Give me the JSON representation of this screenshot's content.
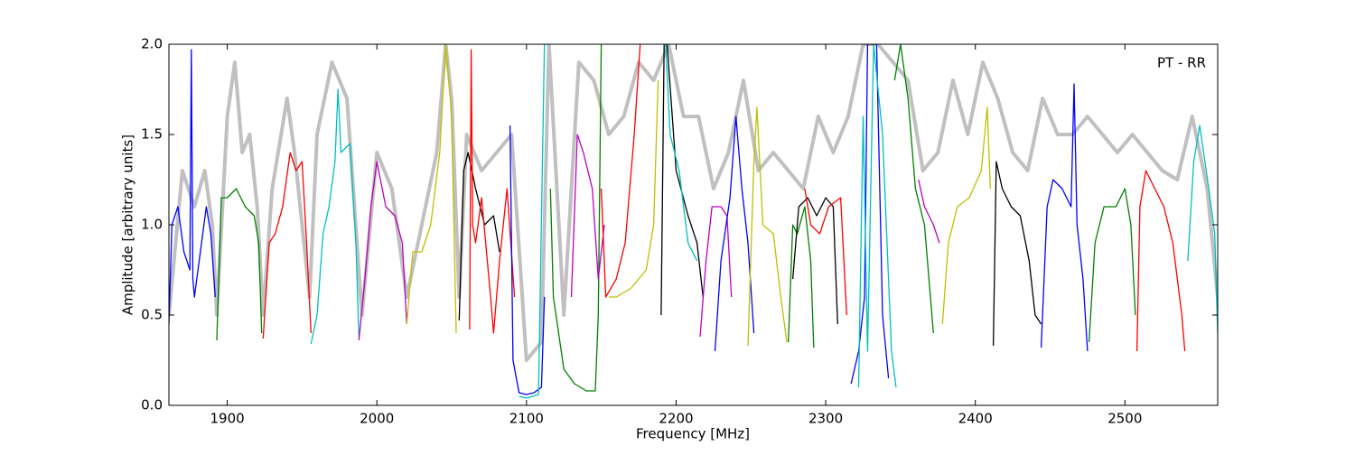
{
  "chart_data": {
    "type": "line",
    "xlabel": "Frequency [MHz]",
    "ylabel": "Amplitude [arbitrary units]",
    "annotation": "PT - RR",
    "xlim": [
      1861,
      2562
    ],
    "ylim": [
      0,
      2
    ],
    "xticks": [
      1900,
      2000,
      2100,
      2200,
      2300,
      2400,
      2500
    ],
    "yticks": [
      {
        "value": 0,
        "label": "0.0"
      },
      0.5,
      {
        "value": 1,
        "label": "1.0"
      },
      1.5,
      {
        "value": 2,
        "label": "2.0"
      }
    ],
    "series": [
      {
        "color": "#c0c0c0",
        "x": [
          1861,
          1870,
          1878,
          1885,
          1890,
          1893,
          1900,
          1905,
          1910,
          1915,
          1920,
          1924,
          1930,
          1940,
          1945,
          1955,
          1960,
          1970,
          1980,
          1990,
          2000,
          2010,
          2020,
          2030,
          2040,
          2046,
          2050,
          2055,
          2060,
          2070,
          2080,
          2090,
          2100,
          2110,
          2115,
          2125,
          2135,
          2145,
          2155,
          2165,
          2175,
          2185,
          2195,
          2205,
          2215,
          2225,
          2235,
          2245,
          2255,
          2265,
          2275,
          2285,
          2295,
          2305,
          2315,
          2325,
          2335,
          2345,
          2355,
          2365,
          2375,
          2385,
          2395,
          2405,
          2415,
          2425,
          2435,
          2445,
          2455,
          2465,
          2475,
          2485,
          2495,
          2505,
          2515,
          2525,
          2535,
          2545,
          2555,
          2562
        ],
        "values": [
          0.5,
          1.3,
          1.1,
          1.3,
          1.0,
          0.5,
          1.6,
          1.9,
          1.4,
          1.5,
          1.1,
          0.5,
          1.2,
          1.7,
          1.4,
          0.6,
          1.5,
          1.9,
          1.7,
          0.5,
          1.4,
          1.2,
          0.6,
          1.0,
          1.4,
          2.0,
          1.7,
          0.6,
          1.5,
          1.3,
          1.4,
          1.5,
          0.25,
          0.35,
          2.0,
          0.5,
          1.9,
          1.8,
          1.5,
          1.6,
          1.9,
          1.8,
          2.0,
          1.6,
          1.6,
          1.2,
          1.4,
          1.8,
          1.3,
          1.4,
          1.3,
          1.2,
          1.6,
          1.4,
          1.6,
          2.0,
          2.0,
          1.9,
          1.8,
          1.3,
          1.4,
          1.8,
          1.5,
          1.9,
          1.7,
          1.4,
          1.3,
          1.7,
          1.5,
          1.5,
          1.6,
          1.5,
          1.4,
          1.5,
          1.4,
          1.3,
          1.25,
          1.6,
          1.2,
          0.6
        ]
      },
      {
        "color": "#0000ff",
        "x": [
          1861,
          1863,
          1867,
          1871,
          1875,
          1876,
          1877,
          1878,
          1882,
          1886,
          1889,
          1892
        ],
        "values": [
          0.45,
          1.0,
          1.1,
          0.85,
          0.75,
          1.97,
          0.7,
          0.6,
          0.85,
          1.1,
          0.95,
          0.6
        ]
      },
      {
        "color": "#008000",
        "x": [
          1893,
          1896,
          1900,
          1906,
          1912,
          1918,
          1921,
          1923
        ],
        "values": [
          0.36,
          1.15,
          1.15,
          1.2,
          1.1,
          1.05,
          0.9,
          0.4
        ]
      },
      {
        "color": "#ff0000",
        "x": [
          1924,
          1928,
          1932,
          1937,
          1942,
          1946,
          1950,
          1953,
          1956
        ],
        "values": [
          0.37,
          0.9,
          0.95,
          1.1,
          1.4,
          1.3,
          1.35,
          0.9,
          0.4
        ]
      },
      {
        "color": "#00bfbf",
        "x": [
          1956,
          1960,
          1964,
          1968,
          1972,
          1974,
          1976,
          1982,
          1986,
          1988
        ],
        "values": [
          0.34,
          0.5,
          0.95,
          1.1,
          1.35,
          1.75,
          1.4,
          1.45,
          0.9,
          0.38
        ]
      },
      {
        "color": "#bf00bf",
        "x": [
          1988,
          1992,
          1996,
          2000,
          2006,
          2012,
          2017,
          2020
        ],
        "values": [
          0.36,
          0.7,
          1.1,
          1.35,
          1.1,
          1.05,
          0.9,
          0.45
        ]
      },
      {
        "color": "#bfbf00",
        "x": [
          2020,
          2024,
          2030,
          2036,
          2042,
          2046,
          2050,
          2053
        ],
        "values": [
          0.45,
          0.85,
          0.85,
          1.0,
          1.4,
          2.0,
          1.6,
          0.4
        ]
      },
      {
        "color": "#000000",
        "x": [
          2055,
          2058,
          2061,
          2066,
          2072,
          2078,
          2082
        ],
        "values": [
          0.47,
          1.3,
          1.4,
          1.2,
          1.0,
          1.05,
          0.85
        ]
      },
      {
        "color": "#ff0000",
        "x": [
          2062,
          2063,
          2064,
          2066,
          2070,
          2076,
          2078,
          2082,
          2087,
          2092
        ],
        "values": [
          0.42,
          1.97,
          1.0,
          0.9,
          1.15,
          0.6,
          0.4,
          0.8,
          1.2,
          0.6
        ]
      },
      {
        "color": "#0000ff",
        "x": [
          2089,
          2091,
          2095,
          2100,
          2105,
          2110,
          2112
        ],
        "values": [
          1.55,
          0.25,
          0.07,
          0.06,
          0.07,
          0.1,
          0.6
        ]
      },
      {
        "color": "#00bfbf",
        "x": [
          2095,
          2100,
          2108,
          2112
        ],
        "values": [
          0.05,
          0.04,
          0.06,
          2.0
        ]
      },
      {
        "color": "#008000",
        "x": [
          2116,
          2118,
          2125,
          2132,
          2140,
          2146,
          2148,
          2150
        ],
        "values": [
          1.2,
          0.6,
          0.2,
          0.12,
          0.08,
          0.08,
          0.5,
          2.0
        ]
      },
      {
        "color": "#bf00bf",
        "x": [
          2130,
          2134,
          2138,
          2144,
          2148,
          2152
        ],
        "values": [
          0.6,
          1.5,
          1.4,
          1.2,
          0.7,
          1.0
        ]
      },
      {
        "color": "#ff0000",
        "x": [
          2150,
          2153,
          2160,
          2166,
          2172,
          2176
        ],
        "values": [
          1.2,
          0.6,
          0.7,
          0.9,
          1.5,
          2.0
        ]
      },
      {
        "color": "#bfbf00",
        "x": [
          2155,
          2160,
          2170,
          2180,
          2185,
          2188
        ],
        "values": [
          0.6,
          0.6,
          0.65,
          0.75,
          1.0,
          1.8
        ]
      },
      {
        "color": "#000000",
        "x": [
          2190,
          2192,
          2194,
          2200,
          2208,
          2214,
          2218
        ],
        "values": [
          0.5,
          2.0,
          2.0,
          1.3,
          1.05,
          0.9,
          0.6
        ]
      },
      {
        "color": "#00bfbf",
        "x": [
          2193,
          2196,
          2202,
          2208,
          2214
        ],
        "values": [
          2.0,
          1.5,
          1.3,
          0.9,
          0.8
        ]
      },
      {
        "color": "#bf00bf",
        "x": [
          2216,
          2220,
          2224,
          2230,
          2234,
          2237
        ],
        "values": [
          0.38,
          0.8,
          1.1,
          1.1,
          1.05,
          0.6
        ]
      },
      {
        "color": "#0000ff",
        "x": [
          2226,
          2230,
          2236,
          2240,
          2244,
          2248,
          2252
        ],
        "values": [
          0.3,
          0.8,
          1.15,
          1.6,
          1.2,
          0.9,
          0.4
        ]
      },
      {
        "color": "#bfbf00",
        "x": [
          2248,
          2252,
          2254,
          2258,
          2265,
          2270,
          2274
        ],
        "values": [
          0.33,
          1.35,
          1.65,
          1.0,
          0.95,
          0.6,
          0.35
        ]
      },
      {
        "color": "#008000",
        "x": [
          2275,
          2278,
          2281,
          2286,
          2290,
          2292
        ],
        "values": [
          0.35,
          1.0,
          0.95,
          1.1,
          0.8,
          0.32
        ]
      },
      {
        "color": "#000000",
        "x": [
          2278,
          2282,
          2288,
          2294,
          2300,
          2305,
          2308
        ],
        "values": [
          0.7,
          1.1,
          1.15,
          1.05,
          1.15,
          1.1,
          0.45
        ]
      },
      {
        "color": "#ff0000",
        "x": [
          2286,
          2290,
          2296,
          2302,
          2310,
          2314
        ],
        "values": [
          1.2,
          1.0,
          0.95,
          1.1,
          1.15,
          0.5
        ]
      },
      {
        "color": "#0000ff",
        "x": [
          2317,
          2322,
          2326,
          2328,
          2334,
          2338,
          2342
        ],
        "values": [
          0.12,
          0.3,
          0.6,
          2.0,
          2.0,
          0.5,
          0.15
        ]
      },
      {
        "color": "#00bfbf",
        "x": [
          2322,
          2325,
          2328,
          2332,
          2338,
          2344,
          2347
        ],
        "values": [
          0.1,
          1.6,
          0.3,
          2.0,
          1.5,
          0.3,
          0.1
        ]
      },
      {
        "color": "#008000",
        "x": [
          2346,
          2350,
          2355,
          2360,
          2366,
          2372
        ],
        "values": [
          1.8,
          2.0,
          1.7,
          1.2,
          1.0,
          0.4
        ]
      },
      {
        "color": "#bf00bf",
        "x": [
          2362,
          2366,
          2372,
          2376
        ],
        "values": [
          1.25,
          1.1,
          1.0,
          0.9
        ]
      },
      {
        "color": "#bfbf00",
        "x": [
          2378,
          2382,
          2388,
          2396,
          2404,
          2408,
          2410
        ],
        "values": [
          0.45,
          0.9,
          1.1,
          1.15,
          1.3,
          1.65,
          1.2
        ]
      },
      {
        "color": "#000000",
        "x": [
          2412,
          2414,
          2418,
          2424,
          2430,
          2436,
          2440,
          2444
        ],
        "values": [
          0.33,
          1.35,
          1.2,
          1.1,
          1.05,
          0.8,
          0.5,
          0.45
        ]
      },
      {
        "color": "#0000ff",
        "x": [
          2444,
          2448,
          2452,
          2458,
          2464,
          2466,
          2468,
          2472,
          2475
        ],
        "values": [
          0.32,
          1.1,
          1.25,
          1.2,
          1.1,
          1.78,
          1.0,
          0.7,
          0.3
        ]
      },
      {
        "color": "#008000",
        "x": [
          2476,
          2480,
          2486,
          2494,
          2500,
          2504,
          2507
        ],
        "values": [
          0.35,
          0.9,
          1.1,
          1.1,
          1.2,
          1.0,
          0.5
        ]
      },
      {
        "color": "#ff0000",
        "x": [
          2508,
          2510,
          2514,
          2520,
          2526,
          2532,
          2538,
          2540
        ],
        "values": [
          0.3,
          1.1,
          1.3,
          1.2,
          1.1,
          0.9,
          0.5,
          0.3
        ]
      },
      {
        "color": "#00bfbf",
        "x": [
          2542,
          2546,
          2550,
          2556,
          2560,
          2562
        ],
        "values": [
          0.8,
          1.35,
          1.55,
          1.2,
          0.95,
          0.4
        ]
      }
    ]
  }
}
